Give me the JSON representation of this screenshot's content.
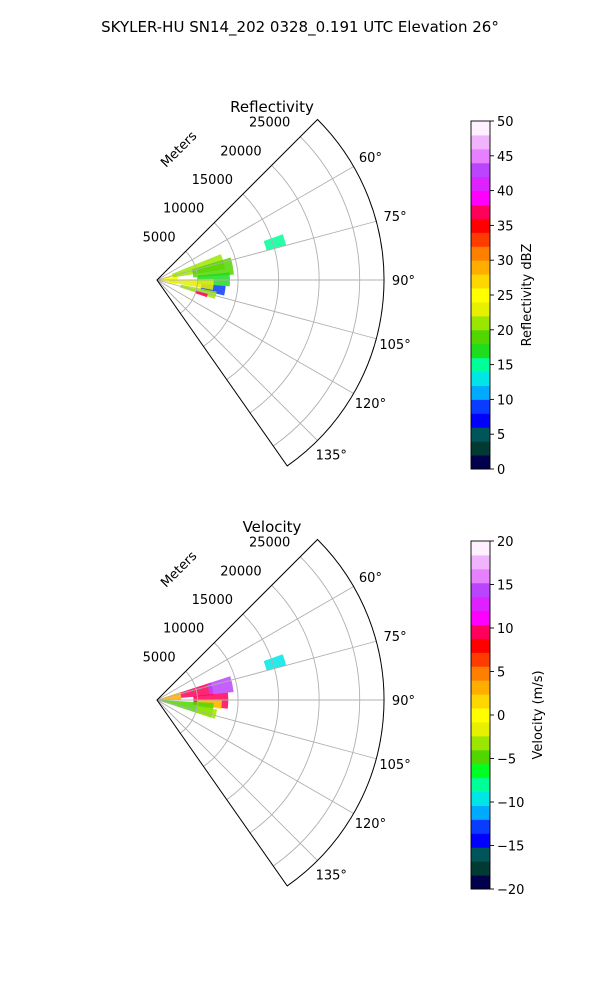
{
  "figure_title": "SKYLER-HU  SN14_202  0328_0.191 UTC Elevation 26°",
  "colors": {
    "grid": "#b0b0b0",
    "frame": "#000000",
    "reflectivity_scale": [
      "#00004c",
      "#003a33",
      "#00555a",
      "#0000ff",
      "#0a3cff",
      "#00aaff",
      "#00e6e6",
      "#00ff99",
      "#1edc1e",
      "#52d600",
      "#9be600",
      "#e6f000",
      "#ffff00",
      "#ffd700",
      "#ffae00",
      "#ff7f00",
      "#ff3c00",
      "#ff0000",
      "#ff005a",
      "#ff00ff",
      "#dd22ff",
      "#bb44ff",
      "#e680ff",
      "#f0b4ff",
      "#fff0ff"
    ],
    "velocity_scale": [
      "#00004c",
      "#003a33",
      "#00555a",
      "#0000ff",
      "#0a3cff",
      "#00aaff",
      "#00e6e6",
      "#00ff99",
      "#00ff22",
      "#52d600",
      "#9be600",
      "#e6f000",
      "#ffff00",
      "#ffd700",
      "#ffae00",
      "#ff7f00",
      "#ff3c00",
      "#ff0000",
      "#ff005a",
      "#ff00ff",
      "#dd22ff",
      "#bb44ff",
      "#e680ff",
      "#f0b4ff",
      "#fff0ff"
    ]
  },
  "chart_data": [
    {
      "type": "heatmap",
      "projection": "polar-sector",
      "title": "Reflectivity",
      "radial_axis_label": "Meters",
      "radial_ticks": [
        5000,
        10000,
        15000,
        20000,
        25000
      ],
      "radial_tick_labels": [
        "5000",
        "10000",
        "15000",
        "20000",
        "25000"
      ],
      "rlim": [
        0,
        28000
      ],
      "azimuth_range_deg": [
        45,
        145
      ],
      "azimuth_ticks": [
        60,
        75,
        90,
        105,
        120,
        135
      ],
      "azimuth_tick_labels": [
        "60°",
        "75°",
        "90°",
        "105°",
        "120°",
        "135°"
      ],
      "grid": true,
      "colorbar": {
        "label": "Reflectivity dBZ",
        "vmin": 0,
        "vmax": 50,
        "ticks": [
          0,
          5,
          10,
          15,
          20,
          25,
          30,
          35,
          40,
          45,
          50
        ],
        "tick_labels": [
          "0",
          "5",
          "10",
          "15",
          "20",
          "25",
          "30",
          "35",
          "40",
          "45",
          "50"
        ]
      },
      "echo_regions": [
        {
          "az": [
            71,
            103
          ],
          "r": [
            0,
            2500
          ],
          "value": 25
        },
        {
          "az": [
            68,
            81
          ],
          "r": [
            2000,
            8500
          ],
          "value": 20
        },
        {
          "az": [
            73,
            86
          ],
          "r": [
            4500,
            9500
          ],
          "value": 18
        },
        {
          "az": [
            84,
            95
          ],
          "r": [
            5000,
            9000
          ],
          "value": 16
        },
        {
          "az": [
            95,
            103
          ],
          "r": [
            5500,
            8500
          ],
          "value": 9
        },
        {
          "az": [
            89,
            100
          ],
          "r": [
            1500,
            7000
          ],
          "value": 22
        },
        {
          "az": [
            101,
            108
          ],
          "r": [
            3000,
            7500
          ],
          "value": 20
        },
        {
          "az": [
            105,
            109
          ],
          "r": [
            5000,
            6500
          ],
          "value": 37
        },
        {
          "az": [
            70,
            75
          ],
          "r": [
            14000,
            16500
          ],
          "value": 14
        }
      ]
    },
    {
      "type": "heatmap",
      "projection": "polar-sector",
      "title": "Velocity",
      "radial_axis_label": "Meters",
      "radial_ticks": [
        5000,
        10000,
        15000,
        20000,
        25000
      ],
      "radial_tick_labels": [
        "5000",
        "10000",
        "15000",
        "20000",
        "25000"
      ],
      "rlim": [
        0,
        28000
      ],
      "azimuth_range_deg": [
        45,
        145
      ],
      "azimuth_ticks": [
        60,
        75,
        90,
        105,
        120,
        135
      ],
      "azimuth_tick_labels": [
        "60°",
        "75°",
        "90°",
        "105°",
        "120°",
        "135°"
      ],
      "grid": true,
      "colorbar": {
        "label": "Velocity (m/s)",
        "vmin": -20,
        "vmax": 20,
        "ticks": [
          -20,
          -15,
          -10,
          -5,
          0,
          5,
          10,
          15,
          20
        ],
        "tick_labels": [
          "−20",
          "−15",
          "−10",
          "−5",
          "0",
          "5",
          "10",
          "15",
          "20"
        ]
      },
      "echo_regions": [
        {
          "az": [
            71,
            90
          ],
          "r": [
            0,
            3000
          ],
          "value": 3
        },
        {
          "az": [
            72,
            85
          ],
          "r": [
            3000,
            7000
          ],
          "value": 9
        },
        {
          "az": [
            72,
            84
          ],
          "r": [
            6500,
            9500
          ],
          "value": 15
        },
        {
          "az": [
            84,
            97
          ],
          "r": [
            4500,
            8800
          ],
          "value": 10
        },
        {
          "az": [
            90,
            98
          ],
          "r": [
            5000,
            8000
          ],
          "value": 1
        },
        {
          "az": [
            93,
            108
          ],
          "r": [
            0,
            7000
          ],
          "value": -5
        },
        {
          "az": [
            99,
            108
          ],
          "r": [
            5000,
            7500
          ],
          "value": -3
        },
        {
          "az": [
            70,
            75
          ],
          "r": [
            14000,
            16500
          ],
          "value": -10
        }
      ]
    }
  ]
}
